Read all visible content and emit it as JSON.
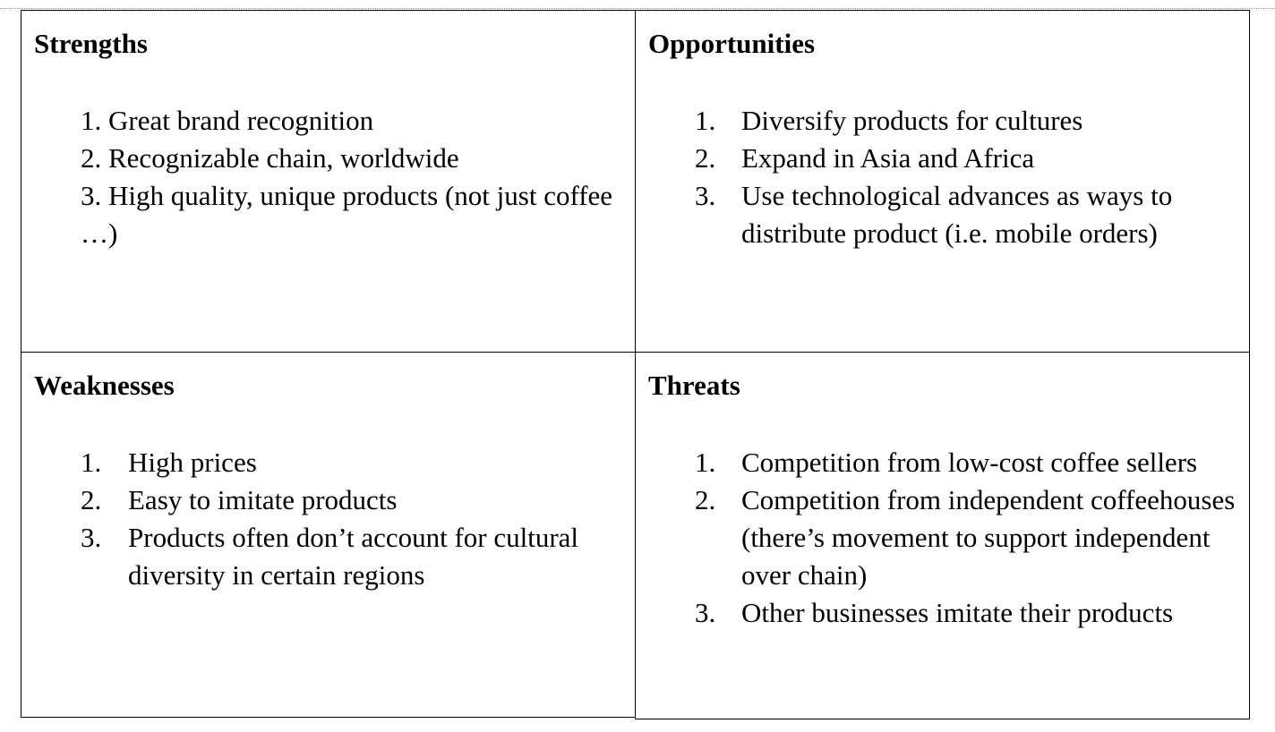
{
  "swot": {
    "strengths": {
      "title": "Strengths",
      "items": [
        {
          "num": "1.",
          "text": "Great brand recognition"
        },
        {
          "num": "2.",
          "text": "Recognizable chain, worldwide"
        },
        {
          "num": "3.",
          "text": "High quality, unique products (not just coffee …)"
        }
      ]
    },
    "opportunities": {
      "title": "Opportunities",
      "items": [
        {
          "num": "1.",
          "text": "Diversify products for cultures"
        },
        {
          "num": "2.",
          "text": "Expand in Asia and Africa"
        },
        {
          "num": "3.",
          "text": "Use technological advances as ways to distribute product (i.e. mobile orders)"
        }
      ]
    },
    "weaknesses": {
      "title": "Weaknesses",
      "items": [
        {
          "num": "1.",
          "text": "High prices"
        },
        {
          "num": "2.",
          "text": "Easy to imitate products"
        },
        {
          "num": "3.",
          "text": "Products often don’t account for cultural diversity in certain regions"
        }
      ]
    },
    "threats": {
      "title": "Threats",
      "items": [
        {
          "num": "1.",
          "text": "Competition from low-cost coffee sellers"
        },
        {
          "num": "2.",
          "text": "Competition from independent coffeehouses (there’s movement to support independent over chain)"
        },
        {
          "num": "3.",
          "text": "Other businesses imitate their products"
        }
      ]
    }
  }
}
